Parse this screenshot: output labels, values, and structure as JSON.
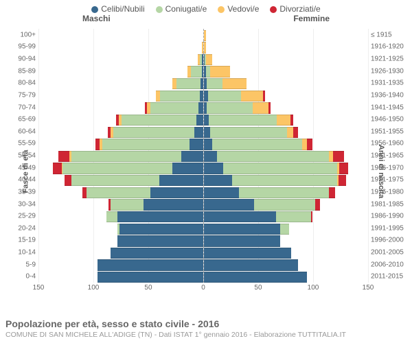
{
  "legend": {
    "items": [
      {
        "label": "Celibi/Nubili",
        "color": "#38688e"
      },
      {
        "label": "Coniugati/e",
        "color": "#b5d6a5"
      },
      {
        "label": "Vedovi/e",
        "color": "#fcc566"
      },
      {
        "label": "Divorziati/e",
        "color": "#cf2634"
      }
    ]
  },
  "gender_labels": {
    "male": "Maschi",
    "female": "Femmine"
  },
  "yaxis_left_title": "Fasce di età",
  "yaxis_right_title": "Anni di nascita",
  "xaxis": {
    "max": 150,
    "ticks": [
      150,
      100,
      50,
      0,
      50,
      100,
      150
    ]
  },
  "title": "Popolazione per età, sesso e stato civile - 2016",
  "subtitle": "COMUNE DI SAN MICHELE ALL'ADIGE (TN) - Dati ISTAT 1° gennaio 2016 - Elaborazione TUTTITALIA.IT",
  "colors": {
    "single": "#38688e",
    "married": "#b5d6a5",
    "widowed": "#fcc566",
    "divorced": "#cf2634",
    "grid": "#eeeeee",
    "centerline": "#aaaaaa"
  },
  "rows": [
    {
      "age": "100+",
      "birth": "≤ 1915",
      "m": {
        "s": 0,
        "c": 0,
        "w": 0,
        "d": 0
      },
      "f": {
        "s": 0,
        "c": 0,
        "w": 2,
        "d": 0
      }
    },
    {
      "age": "95-99",
      "birth": "1916-1920",
      "m": {
        "s": 0,
        "c": 0,
        "w": 1,
        "d": 0
      },
      "f": {
        "s": 0,
        "c": 0,
        "w": 2,
        "d": 0
      }
    },
    {
      "age": "90-94",
      "birth": "1921-1925",
      "m": {
        "s": 1,
        "c": 2,
        "w": 2,
        "d": 0
      },
      "f": {
        "s": 1,
        "c": 1,
        "w": 6,
        "d": 0
      }
    },
    {
      "age": "85-89",
      "birth": "1926-1930",
      "m": {
        "s": 1,
        "c": 10,
        "w": 3,
        "d": 0
      },
      "f": {
        "s": 2,
        "c": 4,
        "w": 18,
        "d": 0
      }
    },
    {
      "age": "80-84",
      "birth": "1931-1935",
      "m": {
        "s": 2,
        "c": 22,
        "w": 4,
        "d": 0
      },
      "f": {
        "s": 3,
        "c": 14,
        "w": 22,
        "d": 0
      }
    },
    {
      "age": "75-79",
      "birth": "1936-1940",
      "m": {
        "s": 3,
        "c": 36,
        "w": 4,
        "d": 0
      },
      "f": {
        "s": 4,
        "c": 30,
        "w": 20,
        "d": 2
      }
    },
    {
      "age": "70-74",
      "birth": "1941-1945",
      "m": {
        "s": 4,
        "c": 44,
        "w": 3,
        "d": 2
      },
      "f": {
        "s": 3,
        "c": 42,
        "w": 14,
        "d": 2
      }
    },
    {
      "age": "65-69",
      "birth": "1946-1950",
      "m": {
        "s": 6,
        "c": 68,
        "w": 3,
        "d": 2
      },
      "f": {
        "s": 5,
        "c": 62,
        "w": 12,
        "d": 3
      }
    },
    {
      "age": "60-64",
      "birth": "1951-1955",
      "m": {
        "s": 8,
        "c": 74,
        "w": 2,
        "d": 3
      },
      "f": {
        "s": 6,
        "c": 70,
        "w": 6,
        "d": 4
      }
    },
    {
      "age": "55-59",
      "birth": "1956-1960",
      "m": {
        "s": 12,
        "c": 80,
        "w": 2,
        "d": 4
      },
      "f": {
        "s": 8,
        "c": 82,
        "w": 4,
        "d": 5
      }
    },
    {
      "age": "50-54",
      "birth": "1961-1965",
      "m": {
        "s": 20,
        "c": 100,
        "w": 2,
        "d": 10
      },
      "f": {
        "s": 12,
        "c": 102,
        "w": 4,
        "d": 10
      }
    },
    {
      "age": "45-49",
      "birth": "1966-1970",
      "m": {
        "s": 28,
        "c": 100,
        "w": 1,
        "d": 8
      },
      "f": {
        "s": 18,
        "c": 104,
        "w": 2,
        "d": 8
      }
    },
    {
      "age": "40-44",
      "birth": "1971-1975",
      "m": {
        "s": 40,
        "c": 80,
        "w": 0,
        "d": 6
      },
      "f": {
        "s": 26,
        "c": 96,
        "w": 1,
        "d": 7
      }
    },
    {
      "age": "35-39",
      "birth": "1976-1980",
      "m": {
        "s": 48,
        "c": 58,
        "w": 0,
        "d": 4
      },
      "f": {
        "s": 32,
        "c": 82,
        "w": 0,
        "d": 6
      }
    },
    {
      "age": "30-34",
      "birth": "1981-1985",
      "m": {
        "s": 54,
        "c": 30,
        "w": 0,
        "d": 2
      },
      "f": {
        "s": 46,
        "c": 56,
        "w": 0,
        "d": 4
      }
    },
    {
      "age": "25-29",
      "birth": "1986-1990",
      "m": {
        "s": 78,
        "c": 10,
        "w": 0,
        "d": 0
      },
      "f": {
        "s": 66,
        "c": 32,
        "w": 0,
        "d": 1
      }
    },
    {
      "age": "20-24",
      "birth": "1991-1995",
      "m": {
        "s": 76,
        "c": 2,
        "w": 0,
        "d": 0
      },
      "f": {
        "s": 70,
        "c": 8,
        "w": 0,
        "d": 0
      }
    },
    {
      "age": "15-19",
      "birth": "1996-2000",
      "m": {
        "s": 78,
        "c": 0,
        "w": 0,
        "d": 0
      },
      "f": {
        "s": 70,
        "c": 0,
        "w": 0,
        "d": 0
      }
    },
    {
      "age": "10-14",
      "birth": "2001-2005",
      "m": {
        "s": 84,
        "c": 0,
        "w": 0,
        "d": 0
      },
      "f": {
        "s": 80,
        "c": 0,
        "w": 0,
        "d": 0
      }
    },
    {
      "age": "5-9",
      "birth": "2006-2010",
      "m": {
        "s": 96,
        "c": 0,
        "w": 0,
        "d": 0
      },
      "f": {
        "s": 86,
        "c": 0,
        "w": 0,
        "d": 0
      }
    },
    {
      "age": "0-4",
      "birth": "2011-2015",
      "m": {
        "s": 96,
        "c": 0,
        "w": 0,
        "d": 0
      },
      "f": {
        "s": 94,
        "c": 0,
        "w": 0,
        "d": 0
      }
    }
  ]
}
